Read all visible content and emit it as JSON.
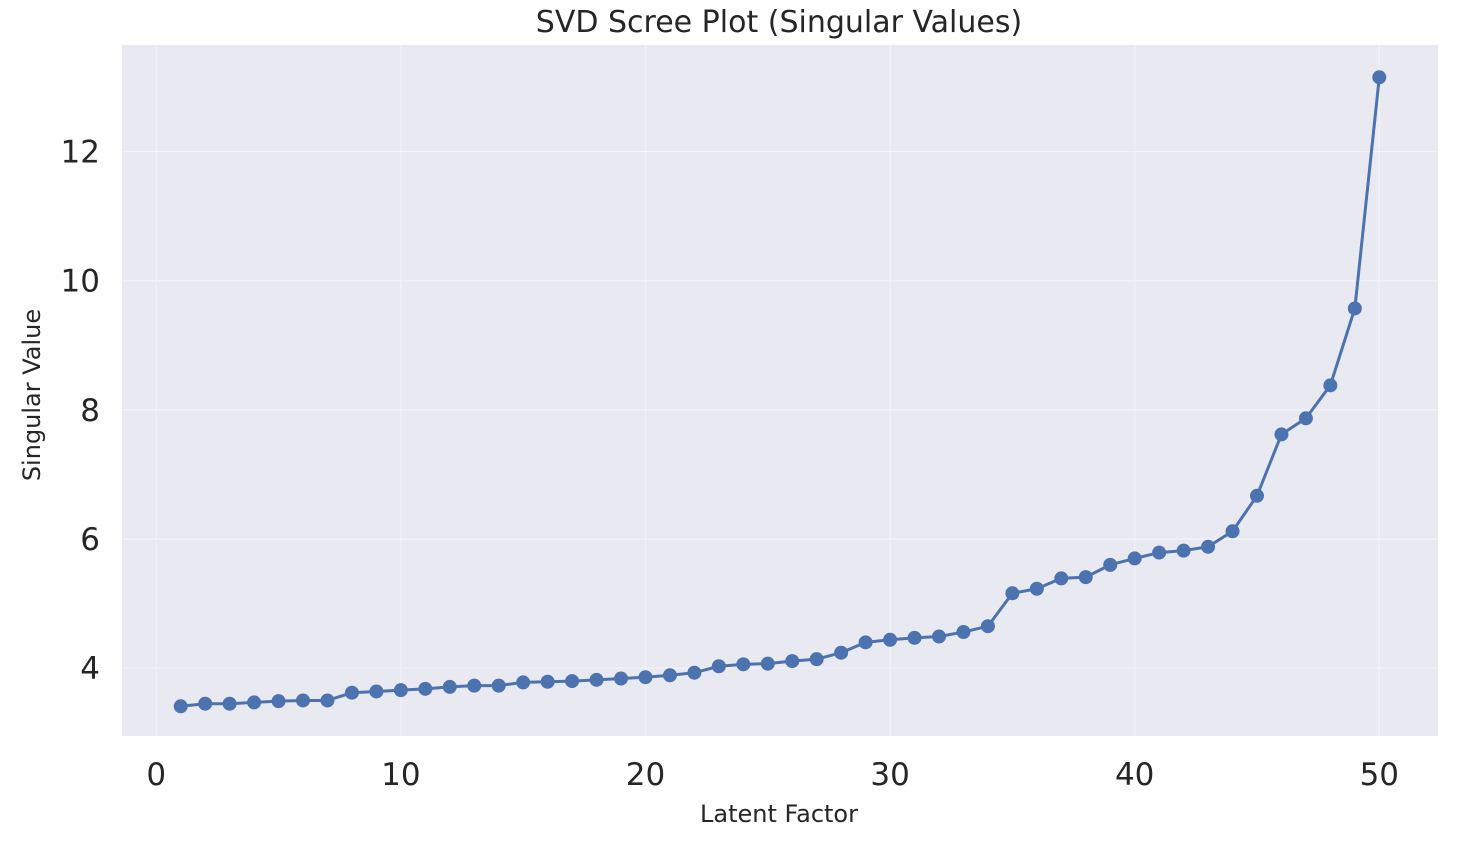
{
  "chart_data": {
    "type": "line",
    "title": "SVD Scree Plot (Singular Values)",
    "xlabel": "Latent Factor",
    "ylabel": "Singular Value",
    "xlim": [
      -1.4,
      52.4
    ],
    "ylim": [
      2.95,
      13.65
    ],
    "xticks": [
      0,
      10,
      20,
      30,
      40,
      50
    ],
    "xtick_labels": [
      "0",
      "10",
      "20",
      "30",
      "40",
      "50"
    ],
    "yticks": [
      4,
      6,
      8,
      10,
      12
    ],
    "ytick_labels": [
      "4",
      "6",
      "8",
      "10",
      "12"
    ],
    "grid": true,
    "colors": {
      "plot_background": "#e9e9f1",
      "series": "#4c72b0",
      "grid": "#f3f3f7"
    },
    "series": [
      {
        "marker": "circle",
        "x": [
          1,
          2,
          3,
          4,
          5,
          6,
          7,
          8,
          9,
          10,
          11,
          12,
          13,
          14,
          15,
          16,
          17,
          18,
          19,
          20,
          21,
          22,
          23,
          24,
          25,
          26,
          27,
          28,
          29,
          30,
          31,
          32,
          33,
          34,
          35,
          36,
          37,
          38,
          39,
          40,
          41,
          42,
          43,
          44,
          45,
          46,
          47,
          48,
          49,
          50
        ],
        "values": [
          3.41,
          3.45,
          3.45,
          3.47,
          3.49,
          3.5,
          3.5,
          3.62,
          3.64,
          3.66,
          3.68,
          3.71,
          3.73,
          3.73,
          3.78,
          3.79,
          3.8,
          3.82,
          3.84,
          3.86,
          3.89,
          3.93,
          4.03,
          4.06,
          4.07,
          4.11,
          4.14,
          4.24,
          4.4,
          4.44,
          4.47,
          4.49,
          4.56,
          4.65,
          5.16,
          5.23,
          5.39,
          5.41,
          5.6,
          5.7,
          5.79,
          5.82,
          5.88,
          6.12,
          6.67,
          7.62,
          7.87,
          8.38,
          9.57,
          13.15
        ]
      }
    ]
  }
}
